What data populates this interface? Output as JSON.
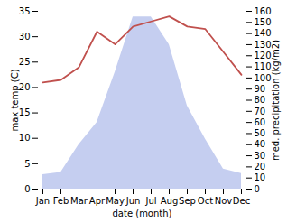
{
  "chart_data": {
    "type": "line",
    "categories": [
      "Jan",
      "Feb",
      "Mar",
      "Apr",
      "May",
      "Jun",
      "Jul",
      "Aug",
      "Sep",
      "Oct",
      "Nov",
      "Dec"
    ],
    "series": [
      {
        "type": "area",
        "axis": "y2",
        "color": "#c5cef0",
        "values": [
          13,
          15,
          40,
          60,
          105,
          155,
          155,
          130,
          75,
          45,
          18,
          14
        ]
      },
      {
        "type": "line",
        "color": "#c0504d",
        "values": [
          21,
          21.5,
          24,
          31,
          28.5,
          32,
          33,
          34,
          32,
          31.5,
          27,
          22.5
        ]
      }
    ],
    "xlabel": "date (month)",
    "ylabel": "max temp (C)",
    "y2label": "med. precipitation (kg/m2)",
    "ylim": [
      0,
      35
    ],
    "yticks": [
      0,
      5,
      10,
      15,
      20,
      25,
      30,
      35
    ],
    "y2lim": [
      0,
      160
    ],
    "y2ticks": [
      0,
      10,
      20,
      30,
      40,
      50,
      60,
      70,
      80,
      90,
      100,
      110,
      120,
      130,
      140,
      150,
      160
    ]
  }
}
